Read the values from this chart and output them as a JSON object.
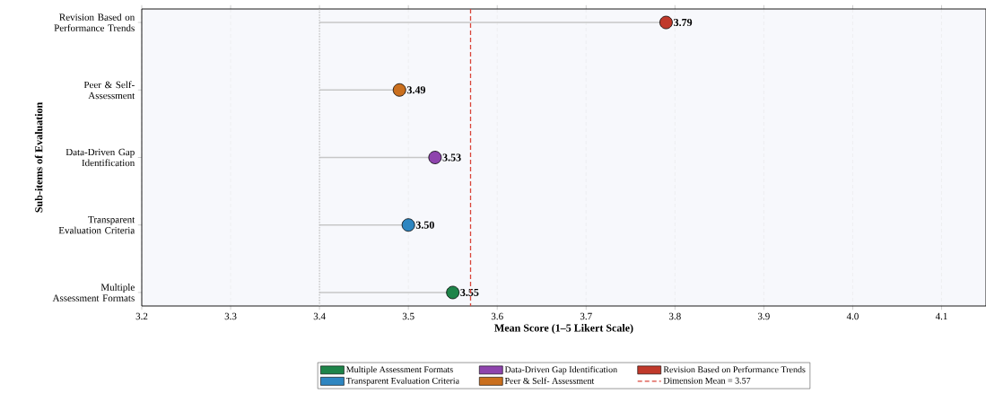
{
  "chart_data": {
    "type": "lollipop",
    "orientation": "horizontal",
    "xlabel": "Mean Score (1–5 Likert Scale)",
    "ylabel": "Sub-items of Evaluation",
    "categories": [
      "Revision Based on Performance Trends",
      "Peer & Self-Assessment",
      "Data-Driven Gap Identification",
      "Transparent Evaluation Criteria",
      "Multiple Assessment Formats"
    ],
    "series": [
      {
        "name": "Multiple Assessment Formats",
        "color": "#1e8449",
        "values": [
          null,
          null,
          null,
          null,
          3.55
        ],
        "value_labels": [
          null,
          null,
          null,
          null,
          "3.55"
        ]
      },
      {
        "name": "Transparent Evaluation Criteria",
        "color": "#2e86c1",
        "values": [
          null,
          null,
          null,
          3.5,
          null
        ],
        "value_labels": [
          null,
          null,
          null,
          "3.50",
          null
        ]
      },
      {
        "name": "Data-Driven Gap Identification",
        "color": "#8e44ad",
        "values": [
          null,
          null,
          3.53,
          null,
          null
        ],
        "value_labels": [
          null,
          null,
          "3.53",
          null,
          null
        ]
      },
      {
        "name": "Peer & Self- Assessment",
        "color": "#ca6f1e",
        "values": [
          null,
          3.49,
          null,
          null,
          null
        ],
        "value_labels": [
          null,
          "3.49",
          null,
          null,
          null
        ]
      },
      {
        "name": "Revision Based on Performance Trends",
        "color": "#c0392b",
        "values": [
          3.79,
          null,
          null,
          null,
          null
        ],
        "value_labels": [
          "3.79",
          null,
          null,
          null,
          null
        ]
      }
    ],
    "xlim": [
      3.2,
      4.15
    ],
    "xticks": [
      3.2,
      3.3,
      3.4,
      3.5,
      3.6,
      3.7,
      3.8,
      3.9,
      {
        "value": 4.0,
        "label": "4.0"
      },
      4.1
    ],
    "grid": "x",
    "legend": "bottom",
    "marker": "circle",
    "ref_lines": [
      {
        "axis": "x",
        "value": 3.57,
        "label": "Dimension Mean = 3.57",
        "color": "#d9453a",
        "line_style": "dashed"
      },
      {
        "axis": "x",
        "value": 3.4,
        "color": "#b0b0b0",
        "line_style": "dotted"
      }
    ]
  }
}
